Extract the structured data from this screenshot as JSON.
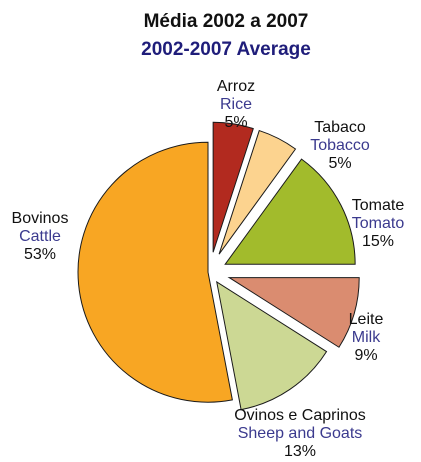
{
  "chart_data": {
    "type": "pie",
    "title": "Média 2002 a 2007",
    "subtitle": "2002-2007 Average",
    "slices": [
      {
        "key": "rice",
        "label_pt": "Arroz",
        "label_en": "Rice",
        "value": 5,
        "pct_label": "5%",
        "color": "#b22a1f"
      },
      {
        "key": "tobacco",
        "label_pt": "Tabaco",
        "label_en": "Tobacco",
        "value": 5,
        "pct_label": "5%",
        "color": "#fcd38f"
      },
      {
        "key": "tomato",
        "label_pt": "Tomate",
        "label_en": "Tomato",
        "value": 15,
        "pct_label": "15%",
        "color": "#a2bb2c"
      },
      {
        "key": "milk",
        "label_pt": "Leite",
        "label_en": "Milk",
        "value": 9,
        "pct_label": "9%",
        "color": "#da8c70"
      },
      {
        "key": "sheep",
        "label_pt": "Ovinos e Caprinos",
        "label_en": "Sheep and Goats",
        "value": 13,
        "pct_label": "13%",
        "color": "#ccd894"
      },
      {
        "key": "cattle",
        "label_pt": "Bovinos",
        "label_en": "Cattle",
        "value": 53,
        "pct_label": "53%",
        "color": "#f8a623"
      }
    ]
  }
}
